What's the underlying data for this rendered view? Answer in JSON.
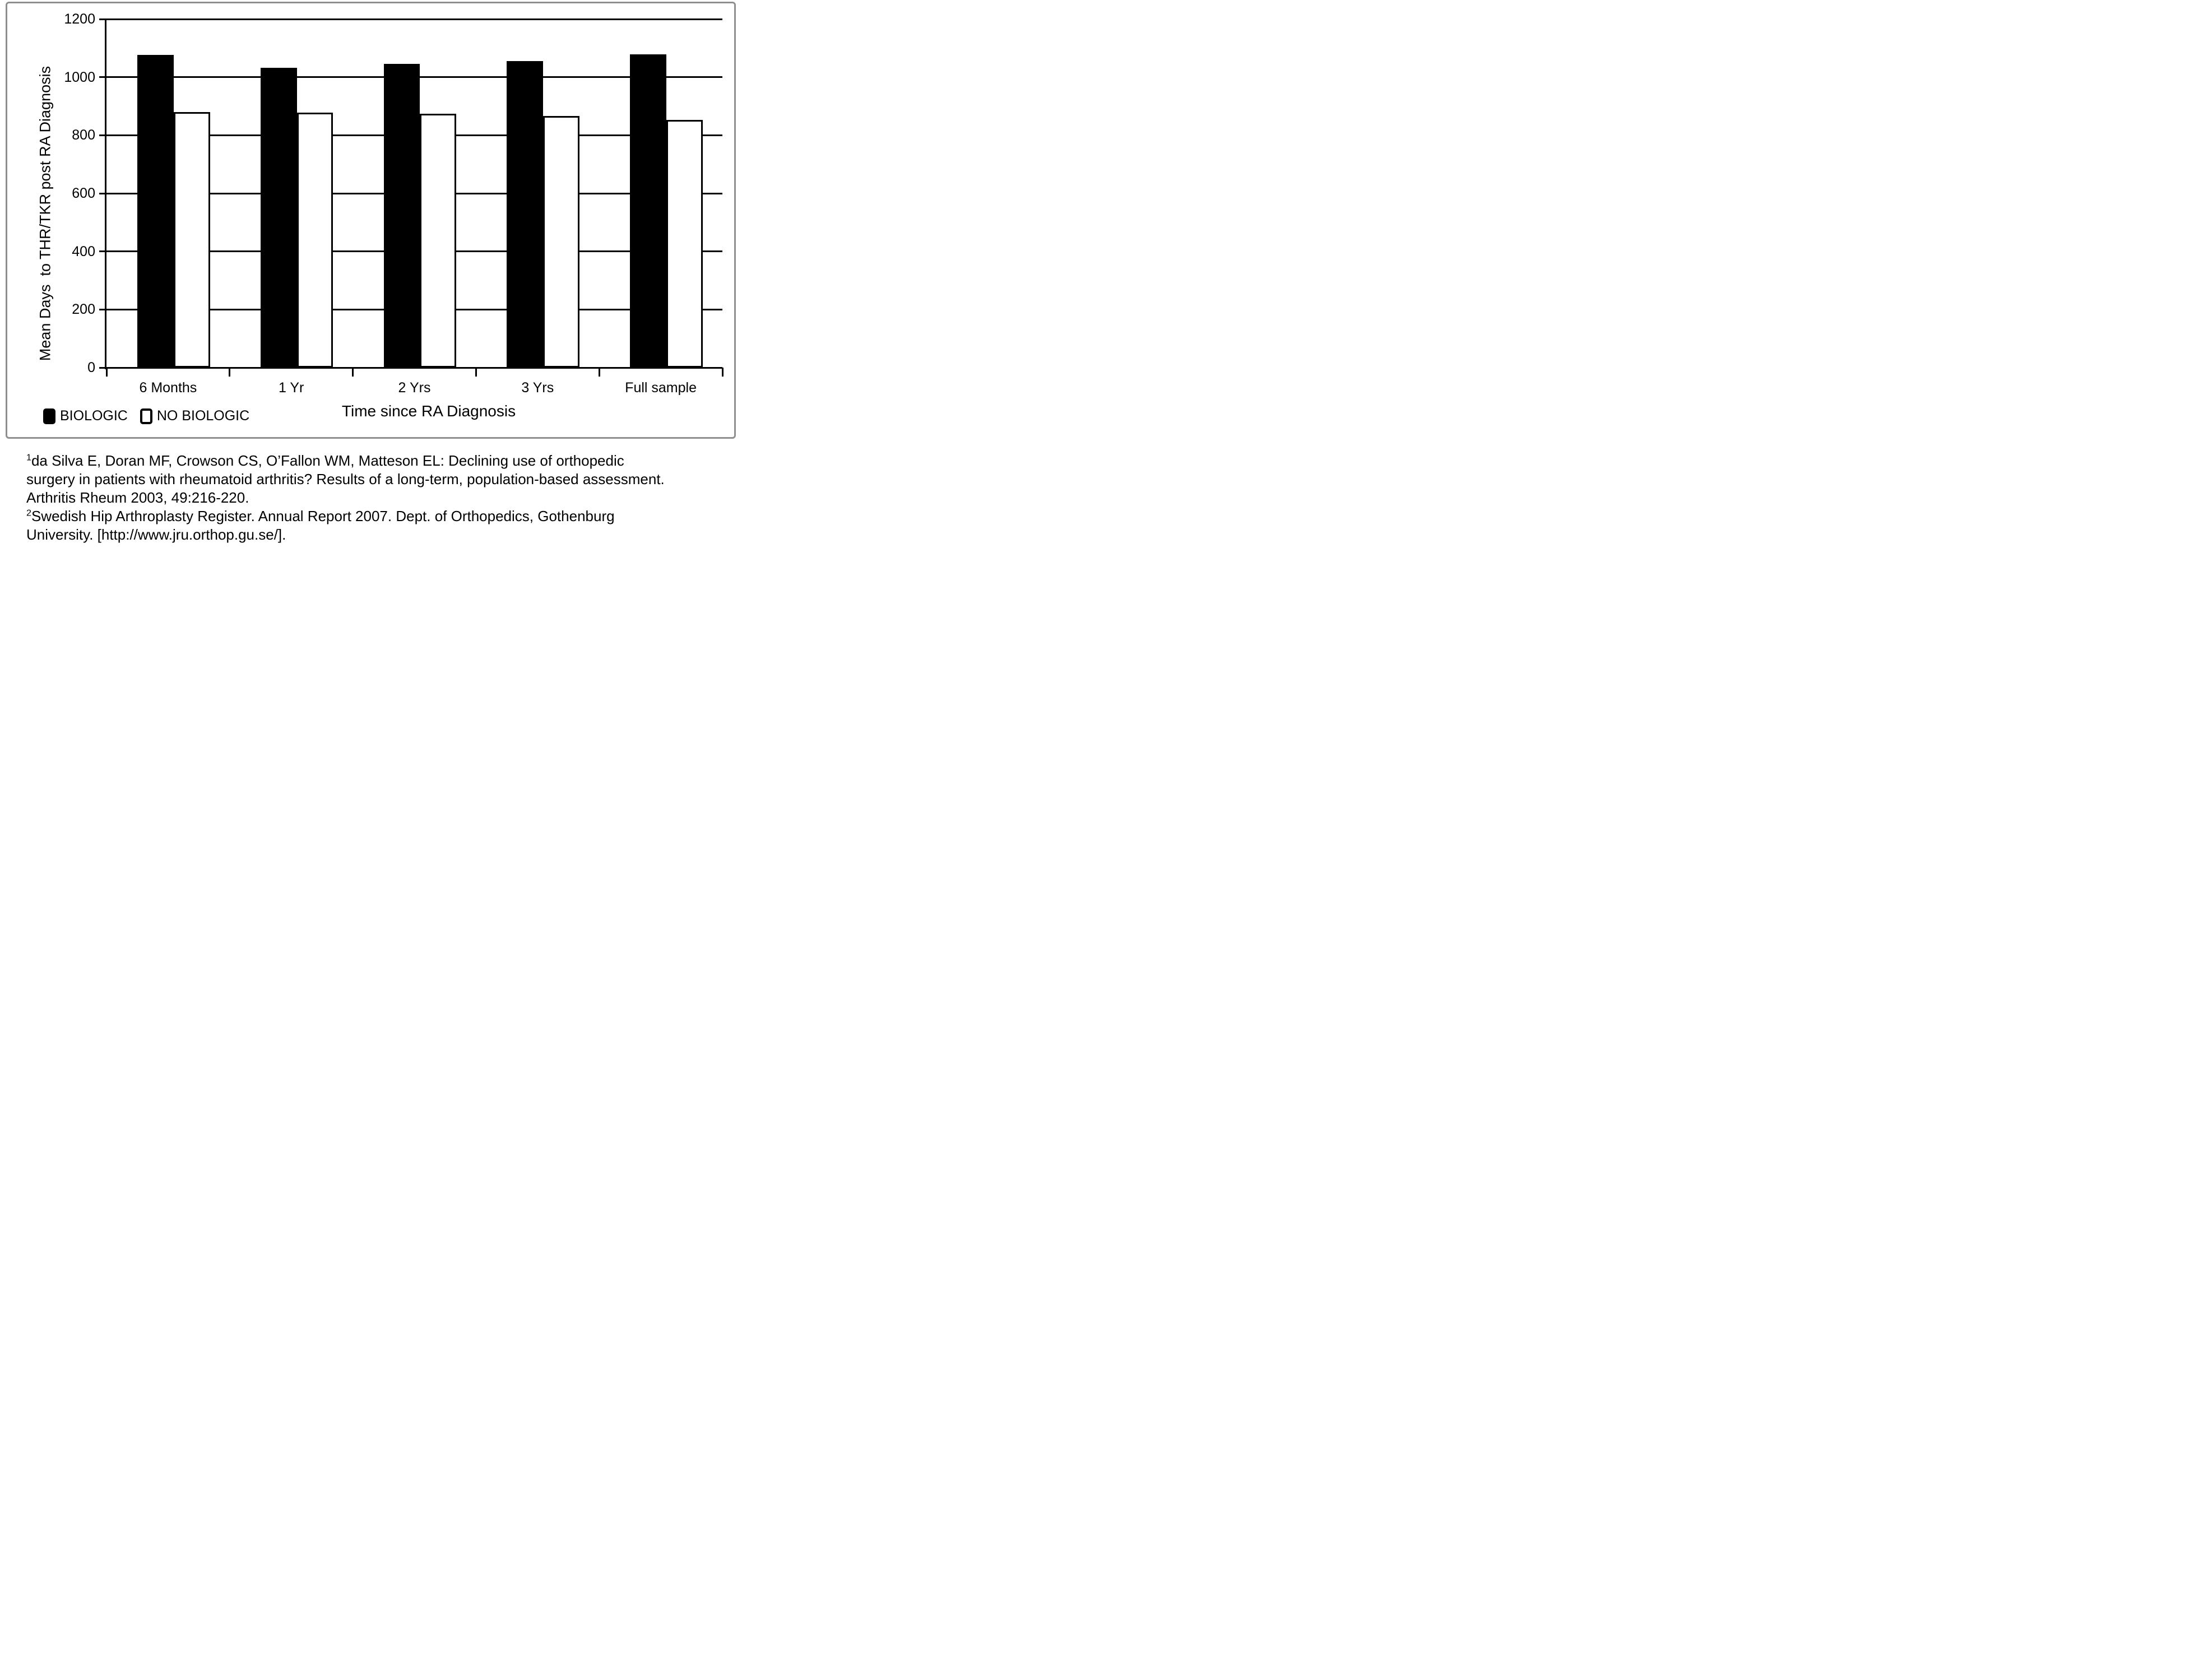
{
  "chart_data": {
    "type": "bar",
    "title": "",
    "categories": [
      "6 Months",
      "1 Yr",
      "2 Yrs",
      "3 Yrs",
      "Full sample"
    ],
    "series": [
      {
        "name": "BIOLOGIC",
        "fill": "#000000",
        "values": [
          1077,
          1032,
          1046,
          1055,
          1078
        ]
      },
      {
        "name": "NO BIOLOGIC",
        "fill": "#ffffff",
        "values": [
          880,
          878,
          873,
          867,
          853
        ]
      }
    ],
    "xlabel": "Time since RA Diagnosis",
    "ylabel": "Mean Days  to THR/TKR post RA Diagnosis",
    "ylim": [
      0,
      1200
    ],
    "yticks": [
      0,
      200,
      400,
      600,
      800,
      1000,
      1200
    ],
    "grid": true,
    "legend_position": "bottom-left"
  },
  "legend": {
    "items": [
      {
        "label": "BIOLOGIC",
        "swatch": "filled-black"
      },
      {
        "label": "NO BIOLOGIC",
        "swatch": "outlined-white"
      }
    ]
  },
  "footnotes": [
    {
      "sup": "1",
      "text": "da Silva E, Doran MF, Crowson CS, O’Fallon WM, Matteson EL: Declining use of orthopedic\nsurgery in patients with rheumatoid arthritis? Results of a long-term, population-based assessment.\nArthritis Rheum 2003, 49:216-220."
    },
    {
      "sup": "2",
      "text": "Swedish Hip Arthroplasty Register. Annual Report 2007. Dept. of Orthopedics, Gothenburg\nUniversity. [http://www.jru.orthop.gu.se/]."
    }
  ],
  "colors": {
    "bar_fill": "#000000",
    "bar_outline": "#000000",
    "grid": "#000000",
    "frame": "#8f8f8f",
    "background": "#ffffff"
  }
}
